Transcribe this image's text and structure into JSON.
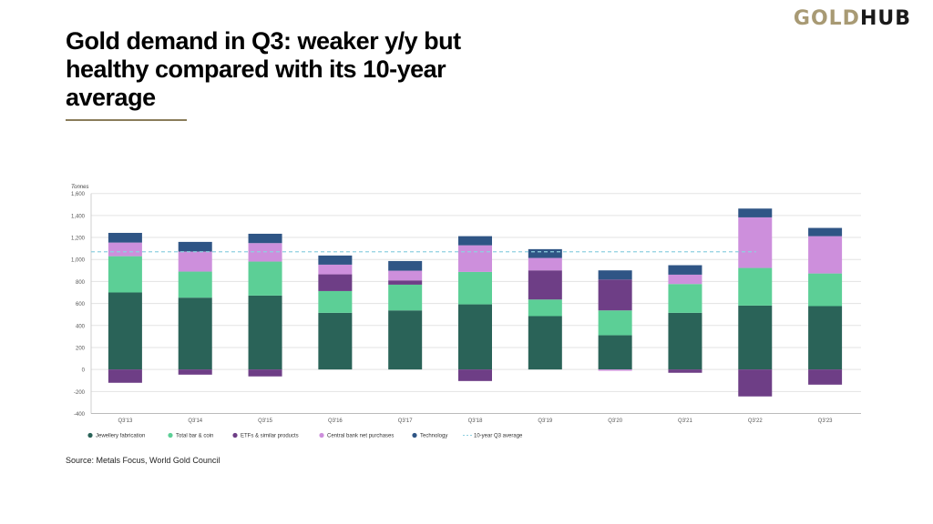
{
  "logo": {
    "part1": "GOLD",
    "part2": "HUB"
  },
  "title": "Gold demand in Q3: weaker y/y but healthy compared with its 10-year average",
  "source": "Source: Metals Focus, World Gold Council",
  "chart_data": {
    "type": "bar",
    "stacked": true,
    "ylabel": "Tonnes",
    "ylim": [
      -400,
      1600
    ],
    "yticks": [
      -400,
      -200,
      0,
      200,
      400,
      600,
      800,
      1000,
      1200,
      1400,
      1600
    ],
    "ytick_labels": [
      "-400",
      "-200",
      "0",
      "200",
      "400",
      "600",
      "800",
      "1,000",
      "1,200",
      "1,400",
      "1,600"
    ],
    "grid": true,
    "legend_position": "bottom",
    "categories": [
      "Q3'13",
      "Q3'14",
      "Q3'15",
      "Q3'16",
      "Q3'17",
      "Q3'18",
      "Q3'19",
      "Q3'20",
      "Q3'21",
      "Q3'22",
      "Q3'23"
    ],
    "series": [
      {
        "name": "Jewellery fabrication",
        "color": "#2a6358",
        "values": [
          700,
          653,
          672,
          515,
          537,
          592,
          485,
          311,
          515,
          581,
          576
        ]
      },
      {
        "name": "Total bar & coin",
        "color": "#5ccf96",
        "values": [
          330,
          237,
          309,
          198,
          234,
          295,
          151,
          226,
          262,
          342,
          297
        ]
      },
      {
        "name": "ETFs & similar products",
        "color": "#6e3e86",
        "values": [
          -121,
          -47,
          -63,
          152,
          39,
          -105,
          265,
          281,
          -30,
          -245,
          -138
        ]
      },
      {
        "name": "Central bank net purchases",
        "color": "#cd8fdc",
        "values": [
          124,
          182,
          168,
          88,
          88,
          242,
          113,
          -12,
          85,
          460,
          339
        ]
      },
      {
        "name": "Technology",
        "color": "#2f5585",
        "values": [
          88,
          88,
          85,
          83,
          88,
          83,
          80,
          83,
          86,
          80,
          75
        ]
      }
    ],
    "reference_line": {
      "name": "10-year Q3 average",
      "value": 1070,
      "color": "#8fd0e0",
      "style": "dashed"
    }
  }
}
